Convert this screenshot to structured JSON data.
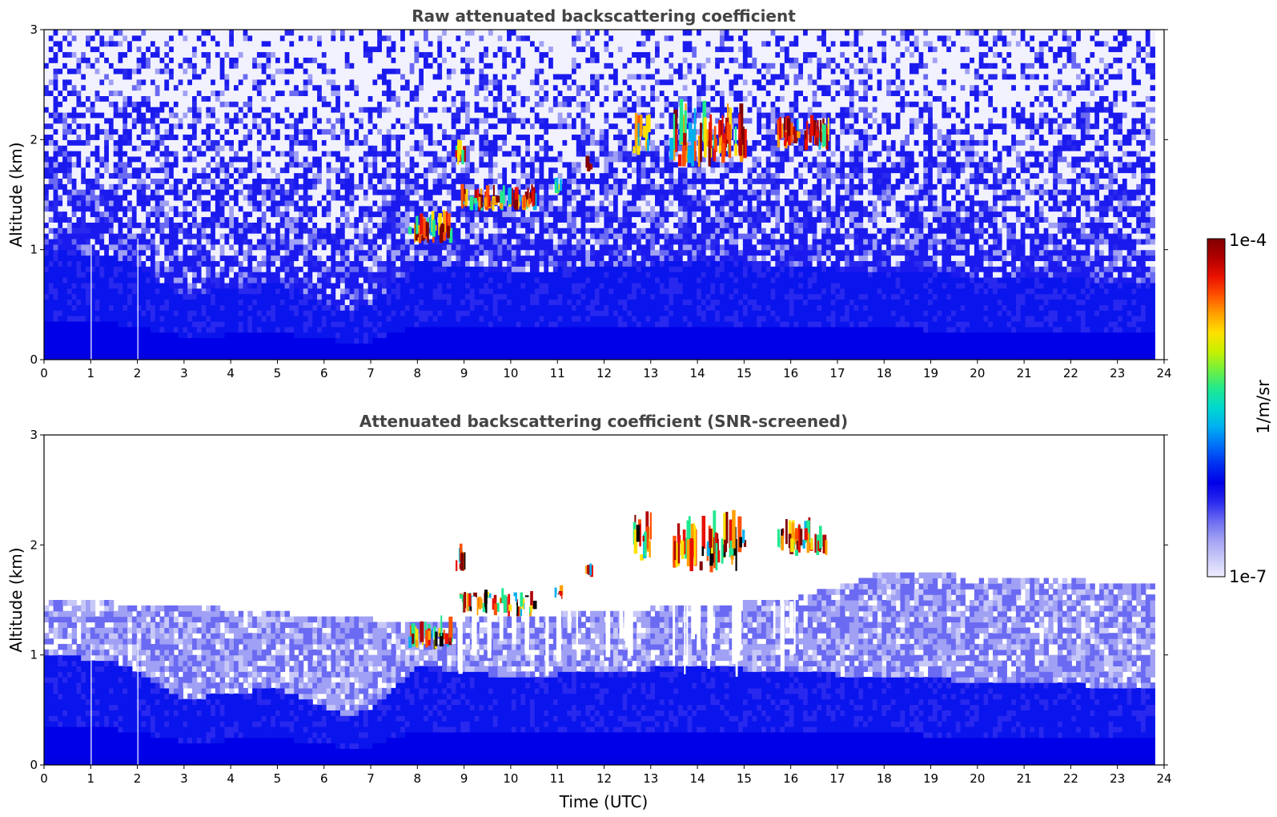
{
  "chart_data": [
    {
      "type": "heatmap",
      "title": "Raw attenuated backscattering coefficient",
      "xlabel": "",
      "ylabel": "Altitude (km)",
      "xlim": [
        0,
        24
      ],
      "ylim": [
        0,
        3
      ],
      "x_ticks": [
        "0",
        "1",
        "2",
        "3",
        "4",
        "5",
        "6",
        "7",
        "8",
        "9",
        "10",
        "11",
        "12",
        "13",
        "14",
        "15",
        "16",
        "17",
        "18",
        "19",
        "20",
        "21",
        "22",
        "23",
        "24"
      ],
      "y_ticks": [
        "0",
        "1",
        "2",
        "3"
      ],
      "data_time_end": 23.8,
      "features": {
        "boundary_layer_top_km": [
          {
            "t": 0,
            "z": 1.0
          },
          {
            "t": 1.5,
            "z": 0.95
          },
          {
            "t": 2,
            "z": 0.85
          },
          {
            "t": 3,
            "z": 0.6
          },
          {
            "t": 5,
            "z": 0.7
          },
          {
            "t": 6.5,
            "z": 0.45
          },
          {
            "t": 7,
            "z": 0.5
          },
          {
            "t": 8,
            "z": 0.9
          },
          {
            "t": 10,
            "z": 0.8
          },
          {
            "t": 14,
            "z": 0.9
          },
          {
            "t": 18,
            "z": 0.8
          },
          {
            "t": 23.8,
            "z": 0.7
          }
        ],
        "clouds": [
          {
            "t0": 8.8,
            "t1": 9.0,
            "z0": 1.75,
            "z1": 2.0
          },
          {
            "t0": 8.9,
            "t1": 10.5,
            "z0": 1.35,
            "z1": 1.55
          },
          {
            "t0": 7.8,
            "t1": 8.7,
            "z0": 1.05,
            "z1": 1.3
          },
          {
            "t0": 10.9,
            "t1": 11.05,
            "z0": 1.5,
            "z1": 1.6
          },
          {
            "t0": 11.6,
            "t1": 11.7,
            "z0": 1.7,
            "z1": 1.8
          },
          {
            "t0": 12.6,
            "t1": 13.0,
            "z0": 1.85,
            "z1": 2.3
          },
          {
            "t0": 13.4,
            "t1": 15.0,
            "z0": 1.75,
            "z1": 2.3
          },
          {
            "t0": 15.7,
            "t1": 16.8,
            "z0": 1.9,
            "z1": 2.2
          }
        ]
      }
    },
    {
      "type": "heatmap",
      "title": "Attenuated backscattering coefficient (SNR-screened)",
      "xlabel": "Time (UTC)",
      "ylabel": "Altitude (km)",
      "xlim": [
        0,
        24
      ],
      "ylim": [
        0,
        3
      ],
      "x_ticks": [
        "0",
        "1",
        "2",
        "3",
        "4",
        "5",
        "6",
        "7",
        "8",
        "9",
        "10",
        "11",
        "12",
        "13",
        "14",
        "15",
        "16",
        "17",
        "18",
        "19",
        "20",
        "21",
        "22",
        "23",
        "24"
      ],
      "y_ticks": [
        "0",
        "1",
        "2",
        "3"
      ],
      "data_time_end": 23.8,
      "features": {
        "aerosol_layer_top_km": [
          {
            "t": 0,
            "z": 1.5
          },
          {
            "t": 3,
            "z": 1.45
          },
          {
            "t": 6,
            "z": 1.35
          },
          {
            "t": 8,
            "z": 1.3
          },
          {
            "t": 12,
            "z": 1.4
          },
          {
            "t": 16,
            "z": 1.5
          },
          {
            "t": 18,
            "z": 1.75
          },
          {
            "t": 21,
            "z": 1.7
          },
          {
            "t": 23.8,
            "z": 1.65
          }
        ]
      }
    }
  ],
  "colorbar": {
    "max_label": "1e-4",
    "min_label": "1e-7",
    "unit_label": "1/m/sr",
    "colors": [
      "#eeeeff",
      "#c8c8f8",
      "#a0a0f4",
      "#6a6af2",
      "#2828ee",
      "#0000e8",
      "#0030f0",
      "#0070f8",
      "#00b0f0",
      "#00d8d0",
      "#20e890",
      "#70f040",
      "#c8f000",
      "#ffe000",
      "#ffa000",
      "#ff5000",
      "#e81000",
      "#b00000",
      "#800000"
    ]
  }
}
